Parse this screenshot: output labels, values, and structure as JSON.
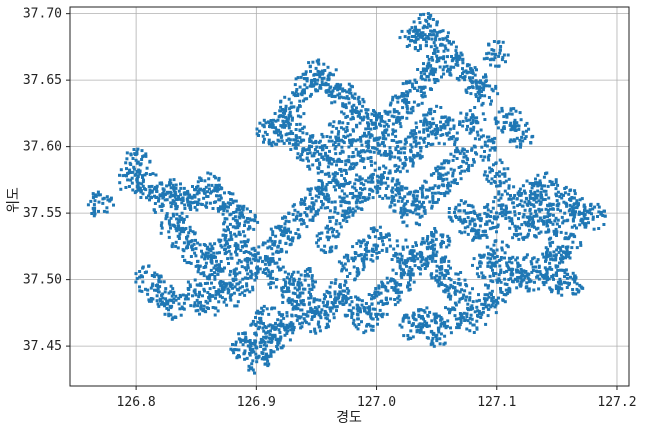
{
  "chart_data": {
    "type": "scatter",
    "xlabel": "경도",
    "ylabel": "위도",
    "xlim": [
      126.745,
      127.21
    ],
    "ylim": [
      37.42,
      37.705
    ],
    "xticks": [
      126.8,
      126.9,
      127.0,
      127.1,
      127.2
    ],
    "yticks": [
      37.45,
      37.5,
      37.55,
      37.6,
      37.65,
      37.7
    ],
    "xtick_labels": [
      "126.8",
      "126.9",
      "127.0",
      "127.1",
      "127.2"
    ],
    "ytick_labels": [
      "37.45",
      "37.50",
      "37.55",
      "37.60",
      "37.65",
      "37.70"
    ],
    "grid": true,
    "marker_color": "#1f77b4",
    "series": [
      {
        "values_note_free": true,
        "points": [
          [
            126.77,
            37.556
          ],
          [
            126.795,
            37.575
          ],
          [
            126.8,
            37.588
          ],
          [
            126.81,
            37.57
          ],
          [
            126.82,
            37.56
          ],
          [
            126.83,
            37.565
          ],
          [
            126.84,
            37.555
          ],
          [
            126.85,
            37.56
          ],
          [
            126.86,
            37.57
          ],
          [
            126.87,
            37.56
          ],
          [
            126.88,
            37.55
          ],
          [
            126.89,
            37.545
          ],
          [
            126.83,
            37.54
          ],
          [
            126.84,
            37.53
          ],
          [
            126.85,
            37.52
          ],
          [
            126.86,
            37.51
          ],
          [
            126.87,
            37.52
          ],
          [
            126.88,
            37.53
          ],
          [
            126.89,
            37.52
          ],
          [
            126.9,
            37.51
          ],
          [
            126.91,
            37.52
          ],
          [
            126.92,
            37.53
          ],
          [
            126.93,
            37.54
          ],
          [
            126.94,
            37.55
          ],
          [
            126.95,
            37.56
          ],
          [
            126.96,
            37.57
          ],
          [
            126.97,
            37.58
          ],
          [
            126.98,
            37.59
          ],
          [
            126.99,
            37.6
          ],
          [
            127.0,
            37.61
          ],
          [
            127.01,
            37.62
          ],
          [
            127.02,
            37.63
          ],
          [
            127.03,
            37.64
          ],
          [
            127.04,
            37.65
          ],
          [
            127.05,
            37.66
          ],
          [
            127.06,
            37.67
          ],
          [
            127.04,
            37.69
          ],
          [
            127.03,
            37.68
          ],
          [
            127.05,
            37.68
          ],
          [
            127.07,
            37.66
          ],
          [
            127.08,
            37.65
          ],
          [
            127.09,
            37.64
          ],
          [
            127.08,
            37.62
          ],
          [
            127.09,
            37.6
          ],
          [
            127.1,
            37.58
          ],
          [
            127.11,
            37.56
          ],
          [
            127.1,
            37.55
          ],
          [
            127.09,
            37.54
          ],
          [
            127.12,
            37.54
          ],
          [
            127.13,
            37.55
          ],
          [
            127.14,
            37.54
          ],
          [
            127.15,
            37.55
          ],
          [
            127.16,
            37.56
          ],
          [
            127.17,
            37.55
          ],
          [
            127.18,
            37.548
          ],
          [
            127.16,
            37.53
          ],
          [
            127.15,
            37.52
          ],
          [
            127.14,
            37.51
          ],
          [
            127.15,
            37.5
          ],
          [
            127.16,
            37.495
          ],
          [
            127.13,
            37.5
          ],
          [
            127.12,
            37.51
          ],
          [
            127.11,
            37.5
          ],
          [
            127.1,
            37.49
          ],
          [
            127.09,
            37.48
          ],
          [
            127.08,
            37.47
          ],
          [
            127.07,
            37.49
          ],
          [
            127.06,
            37.5
          ],
          [
            127.05,
            37.51
          ],
          [
            127.04,
            37.52
          ],
          [
            127.03,
            37.51
          ],
          [
            127.02,
            37.5
          ],
          [
            127.01,
            37.49
          ],
          [
            127.0,
            37.48
          ],
          [
            126.99,
            37.47
          ],
          [
            126.98,
            37.48
          ],
          [
            126.97,
            37.49
          ],
          [
            126.96,
            37.48
          ],
          [
            126.95,
            37.47
          ],
          [
            126.94,
            37.48
          ],
          [
            126.93,
            37.47
          ],
          [
            126.92,
            37.46
          ],
          [
            126.91,
            37.47
          ],
          [
            126.9,
            37.46
          ],
          [
            126.89,
            37.45
          ],
          [
            126.9,
            37.44
          ],
          [
            126.91,
            37.45
          ],
          [
            126.93,
            37.49
          ],
          [
            126.94,
            37.5
          ],
          [
            126.92,
            37.5
          ],
          [
            126.96,
            37.53
          ],
          [
            126.97,
            37.55
          ],
          [
            126.98,
            37.56
          ],
          [
            126.99,
            37.57
          ],
          [
            127.0,
            37.58
          ],
          [
            127.01,
            37.57
          ],
          [
            127.02,
            37.56
          ],
          [
            127.03,
            37.55
          ],
          [
            127.04,
            37.56
          ],
          [
            127.05,
            37.57
          ],
          [
            127.06,
            37.58
          ],
          [
            127.07,
            37.59
          ],
          [
            127.06,
            37.61
          ],
          [
            127.05,
            37.62
          ],
          [
            127.04,
            37.61
          ],
          [
            127.03,
            37.6
          ],
          [
            127.02,
            37.59
          ],
          [
            127.01,
            37.6
          ],
          [
            126.99,
            37.62
          ],
          [
            126.98,
            37.63
          ],
          [
            126.97,
            37.64
          ],
          [
            126.96,
            37.65
          ],
          [
            126.95,
            37.655
          ],
          [
            126.94,
            37.645
          ],
          [
            126.93,
            37.63
          ],
          [
            126.92,
            37.62
          ],
          [
            126.91,
            37.61
          ],
          [
            126.93,
            37.61
          ],
          [
            126.94,
            37.6
          ],
          [
            126.95,
            37.59
          ],
          [
            126.96,
            37.6
          ],
          [
            126.97,
            37.61
          ],
          [
            127.07,
            37.55
          ],
          [
            127.08,
            37.54
          ],
          [
            127.05,
            37.53
          ],
          [
            127.0,
            37.53
          ],
          [
            126.99,
            37.52
          ],
          [
            126.98,
            37.51
          ],
          [
            127.02,
            37.52
          ],
          [
            127.06,
            37.47
          ],
          [
            127.05,
            37.46
          ],
          [
            127.04,
            37.47
          ],
          [
            127.03,
            37.465
          ],
          [
            127.09,
            37.51
          ],
          [
            127.1,
            37.52
          ],
          [
            126.81,
            37.5
          ],
          [
            126.82,
            37.49
          ],
          [
            126.83,
            37.48
          ],
          [
            126.85,
            37.49
          ],
          [
            126.86,
            37.48
          ],
          [
            126.87,
            37.5
          ],
          [
            126.88,
            37.49
          ],
          [
            126.89,
            37.5
          ],
          [
            127.1,
            37.67
          ],
          [
            127.11,
            37.62
          ],
          [
            127.12,
            37.61
          ],
          [
            127.13,
            37.565
          ],
          [
            127.14,
            37.57
          ]
        ]
      }
    ]
  }
}
